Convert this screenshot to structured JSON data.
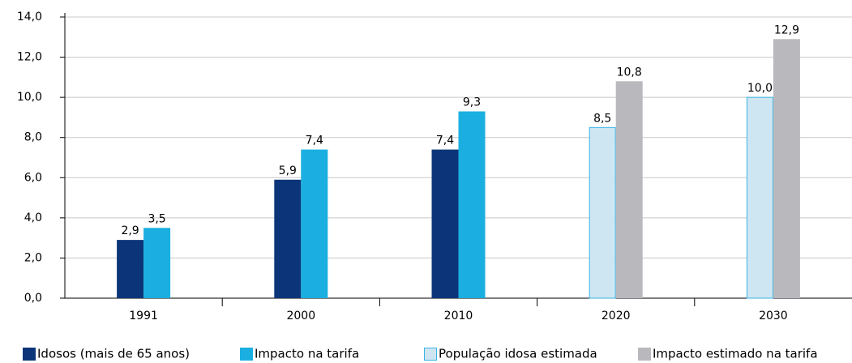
{
  "chart_data": {
    "type": "bar",
    "categories": [
      "1991",
      "2000",
      "2010",
      "2020",
      "2030"
    ],
    "series": [
      {
        "name": "Idosos (mais de 65 anos)",
        "color": "#0b3578",
        "values": [
          2.9,
          5.9,
          7.4,
          null,
          null
        ],
        "value_labels": [
          "2,9",
          "5,9",
          "7,4",
          null,
          null
        ]
      },
      {
        "name": "Impacto na tarifa",
        "color": "#1aafe0",
        "values": [
          3.5,
          7.4,
          9.3,
          null,
          null
        ],
        "value_labels": [
          "3,5",
          "7,4",
          "9,3",
          null,
          null
        ]
      },
      {
        "name": "População idosa estimada",
        "color": "#cde6f2",
        "border": "#3ab3e3",
        "values": [
          null,
          null,
          null,
          8.5,
          10.0
        ],
        "value_labels": [
          null,
          null,
          null,
          "8,5",
          "10,0"
        ]
      },
      {
        "name": "Impacto estimado na tarifa",
        "color": "#b9b9bd",
        "values": [
          null,
          null,
          null,
          10.8,
          12.9
        ],
        "value_labels": [
          null,
          null,
          null,
          "10,8",
          "12,9"
        ]
      }
    ],
    "ylim": [
      0,
      14
    ],
    "yticks": [
      {
        "value": 0,
        "label": "0,0"
      },
      {
        "value": 2,
        "label": "2,0"
      },
      {
        "value": 4,
        "label": "4,0"
      },
      {
        "value": 6,
        "label": "6,0"
      },
      {
        "value": 8,
        "label": "8,0"
      },
      {
        "value": 10,
        "label": "10,0"
      },
      {
        "value": 12,
        "label": "12,0"
      },
      {
        "value": 14,
        "label": "14,0"
      }
    ],
    "grid": true
  }
}
